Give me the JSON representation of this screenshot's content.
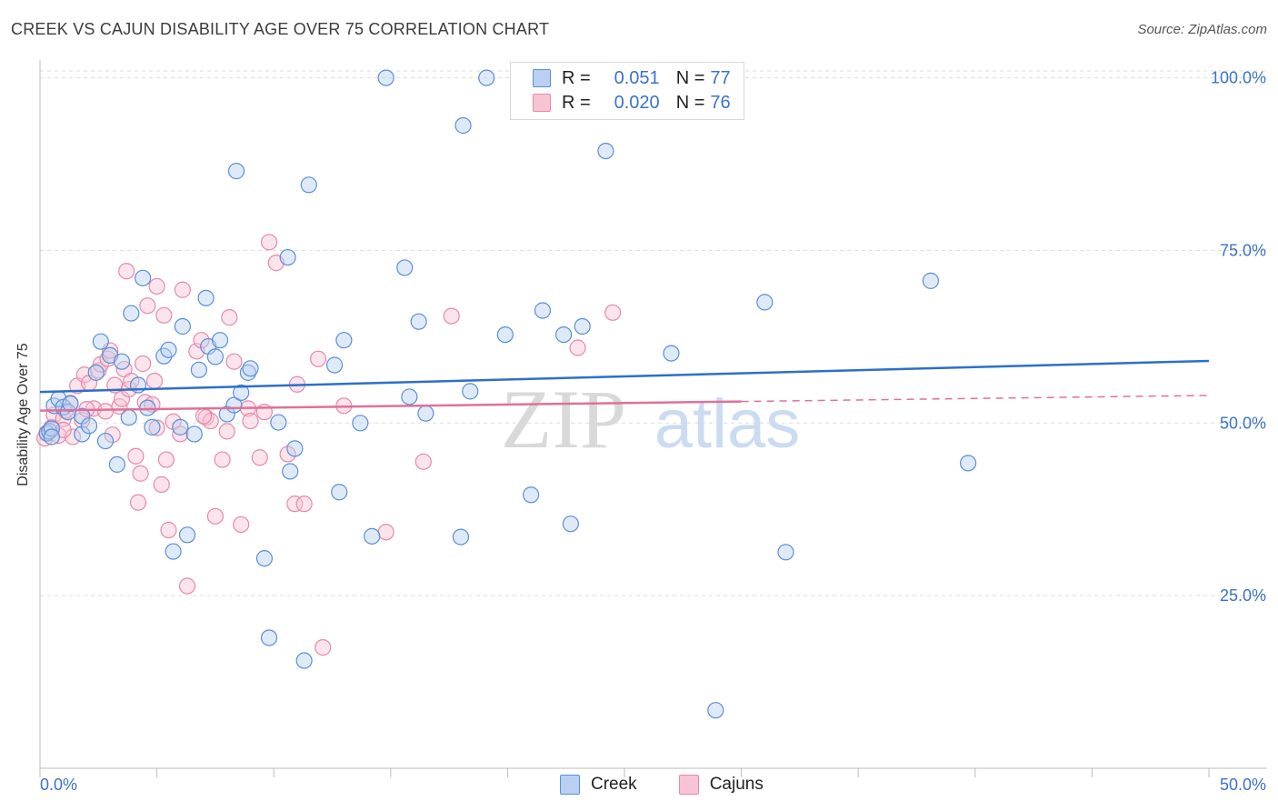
{
  "title": "CREEK VS CAJUN DISABILITY AGE OVER 75 CORRELATION CHART",
  "source": "Source: ZipAtlas.com",
  "watermark": {
    "zip": "ZIP",
    "atlas": "atlas"
  },
  "legend": {
    "rows": [
      {
        "r_label": "R =",
        "r_value": "0.051",
        "n_label": "N =",
        "n_value": "77"
      },
      {
        "r_label": "R =",
        "r_value": "0.020",
        "n_label": "N =",
        "n_value": "76"
      }
    ]
  },
  "bottom_legend": [
    "Creek",
    "Cajuns"
  ],
  "colors": {
    "creek_fill": "#b8d0f2",
    "creek_stroke": "#5b8fd6",
    "creek_line": "#2c6fcb",
    "cajun_fill": "#f7c4d4",
    "cajun_stroke": "#e58aa8",
    "cajun_line": "#e0709a",
    "axis_label": "#3b72c9",
    "grid": "#dddddd"
  },
  "chart_data": {
    "type": "scatter",
    "title": "CREEK VS CAJUN DISABILITY AGE OVER 75 CORRELATION CHART",
    "xlabel": "",
    "ylabel": "Disability Age Over 75",
    "xlim": [
      0,
      50
    ],
    "ylim": [
      0,
      101
    ],
    "x_tick_labels": [
      {
        "value": 0,
        "label": "0.0%"
      },
      {
        "value": 50,
        "label": "50.0%"
      }
    ],
    "y_tick_labels": [
      {
        "value": 25,
        "label": "25.0%"
      },
      {
        "value": 50,
        "label": "50.0%"
      },
      {
        "value": 75,
        "label": "75.0%"
      },
      {
        "value": 100,
        "label": "100.0%"
      }
    ],
    "series": [
      {
        "name": "Creek",
        "r": 0.051,
        "n": 77,
        "trend": {
          "x": [
            0,
            50
          ],
          "y": [
            54.5,
            59.0
          ],
          "dashed_from": null
        },
        "points": [
          [
            0.3,
            48.5
          ],
          [
            0.4,
            48.8
          ],
          [
            0.5,
            49.2
          ],
          [
            0.5,
            48.0
          ],
          [
            0.6,
            52.5
          ],
          [
            0.8,
            53.5
          ],
          [
            1.0,
            52.3
          ],
          [
            1.2,
            51.6
          ],
          [
            1.3,
            52.8
          ],
          [
            1.8,
            51.0
          ],
          [
            1.8,
            48.4
          ],
          [
            2.1,
            49.6
          ],
          [
            2.4,
            57.3
          ],
          [
            2.6,
            61.8
          ],
          [
            2.8,
            47.4
          ],
          [
            3.0,
            59.8
          ],
          [
            3.3,
            44.0
          ],
          [
            3.5,
            58.9
          ],
          [
            3.8,
            50.8
          ],
          [
            3.9,
            65.9
          ],
          [
            4.2,
            55.5
          ],
          [
            4.4,
            71.0
          ],
          [
            4.6,
            52.2
          ],
          [
            4.8,
            49.4
          ],
          [
            5.3,
            59.7
          ],
          [
            5.5,
            60.6
          ],
          [
            5.7,
            31.4
          ],
          [
            6.0,
            49.4
          ],
          [
            6.1,
            64.0
          ],
          [
            6.3,
            33.8
          ],
          [
            6.6,
            48.4
          ],
          [
            6.8,
            57.7
          ],
          [
            7.1,
            68.1
          ],
          [
            7.2,
            61.1
          ],
          [
            7.5,
            59.6
          ],
          [
            7.7,
            62.0
          ],
          [
            8.0,
            51.3
          ],
          [
            8.3,
            52.6
          ],
          [
            8.4,
            86.5
          ],
          [
            8.6,
            54.4
          ],
          [
            8.9,
            57.3
          ],
          [
            9.0,
            57.9
          ],
          [
            9.6,
            30.4
          ],
          [
            9.8,
            18.9
          ],
          [
            10.2,
            50.1
          ],
          [
            10.6,
            74.0
          ],
          [
            10.7,
            43.0
          ],
          [
            10.9,
            46.3
          ],
          [
            11.3,
            15.6
          ],
          [
            11.5,
            84.5
          ],
          [
            12.6,
            58.4
          ],
          [
            12.8,
            40.0
          ],
          [
            13.0,
            62.0
          ],
          [
            13.7,
            50.0
          ],
          [
            14.2,
            33.6
          ],
          [
            14.8,
            100.0
          ],
          [
            15.6,
            72.5
          ],
          [
            15.8,
            53.8
          ],
          [
            16.2,
            64.7
          ],
          [
            16.5,
            51.4
          ],
          [
            18.0,
            33.5
          ],
          [
            18.1,
            93.1
          ],
          [
            18.4,
            54.6
          ],
          [
            19.1,
            100.0
          ],
          [
            19.9,
            62.8
          ],
          [
            21.0,
            39.6
          ],
          [
            21.5,
            66.3
          ],
          [
            22.4,
            62.8
          ],
          [
            22.7,
            35.4
          ],
          [
            23.2,
            64.0
          ],
          [
            24.2,
            89.4
          ],
          [
            27.0,
            60.1
          ],
          [
            28.9,
            8.4
          ],
          [
            31.0,
            67.5
          ],
          [
            31.9,
            31.3
          ],
          [
            38.1,
            70.6
          ],
          [
            39.7,
            44.2
          ]
        ]
      },
      {
        "name": "Cajuns",
        "r": 0.02,
        "n": 76,
        "trend": {
          "x": [
            0,
            50
          ],
          "y": [
            51.8,
            54.0
          ],
          "dashed_from": 30
        },
        "points": [
          [
            0.2,
            47.8
          ],
          [
            0.3,
            48.6
          ],
          [
            0.5,
            49.4
          ],
          [
            0.6,
            51.2
          ],
          [
            0.8,
            48.2
          ],
          [
            1.0,
            50.6
          ],
          [
            1.1,
            51.8
          ],
          [
            1.3,
            52.9
          ],
          [
            1.4,
            48.0
          ],
          [
            1.6,
            55.4
          ],
          [
            1.8,
            50.4
          ],
          [
            1.9,
            57.0
          ],
          [
            2.1,
            55.8
          ],
          [
            2.3,
            52.1
          ],
          [
            2.5,
            57.6
          ],
          [
            2.6,
            58.5
          ],
          [
            2.8,
            51.7
          ],
          [
            2.9,
            59.3
          ],
          [
            3.1,
            48.3
          ],
          [
            3.2,
            55.5
          ],
          [
            3.4,
            52.4
          ],
          [
            3.5,
            53.5
          ],
          [
            3.6,
            57.8
          ],
          [
            3.7,
            72.0
          ],
          [
            3.8,
            54.9
          ],
          [
            3.9,
            56.1
          ],
          [
            4.1,
            45.2
          ],
          [
            4.2,
            38.5
          ],
          [
            4.3,
            42.7
          ],
          [
            4.4,
            58.6
          ],
          [
            4.5,
            53.0
          ],
          [
            4.6,
            67.0
          ],
          [
            4.8,
            52.7
          ],
          [
            4.9,
            56.1
          ],
          [
            5.0,
            69.8
          ],
          [
            5.2,
            41.1
          ],
          [
            5.3,
            65.6
          ],
          [
            5.4,
            44.7
          ],
          [
            5.5,
            34.5
          ],
          [
            5.7,
            50.2
          ],
          [
            6.0,
            48.4
          ],
          [
            6.1,
            69.3
          ],
          [
            6.3,
            26.4
          ],
          [
            6.7,
            60.4
          ],
          [
            6.9,
            62.0
          ],
          [
            7.1,
            50.8
          ],
          [
            7.3,
            50.3
          ],
          [
            7.5,
            36.5
          ],
          [
            7.8,
            44.7
          ],
          [
            8.0,
            48.8
          ],
          [
            8.1,
            65.3
          ],
          [
            8.3,
            58.9
          ],
          [
            8.6,
            35.3
          ],
          [
            8.9,
            52.1
          ],
          [
            9.0,
            50.3
          ],
          [
            9.4,
            45.0
          ],
          [
            9.6,
            51.6
          ],
          [
            9.8,
            76.2
          ],
          [
            10.1,
            73.2
          ],
          [
            10.6,
            45.5
          ],
          [
            10.9,
            38.3
          ],
          [
            11.0,
            55.6
          ],
          [
            11.3,
            38.3
          ],
          [
            11.9,
            59.3
          ],
          [
            12.1,
            17.5
          ],
          [
            13.0,
            52.5
          ],
          [
            14.8,
            34.2
          ],
          [
            16.4,
            44.4
          ],
          [
            17.6,
            65.5
          ],
          [
            23.0,
            60.9
          ],
          [
            24.5,
            66.0
          ],
          [
            3.0,
            60.5
          ],
          [
            2.0,
            52.0
          ],
          [
            1.0,
            49.0
          ],
          [
            5.0,
            49.3
          ],
          [
            7.0,
            51.0
          ]
        ]
      }
    ]
  }
}
